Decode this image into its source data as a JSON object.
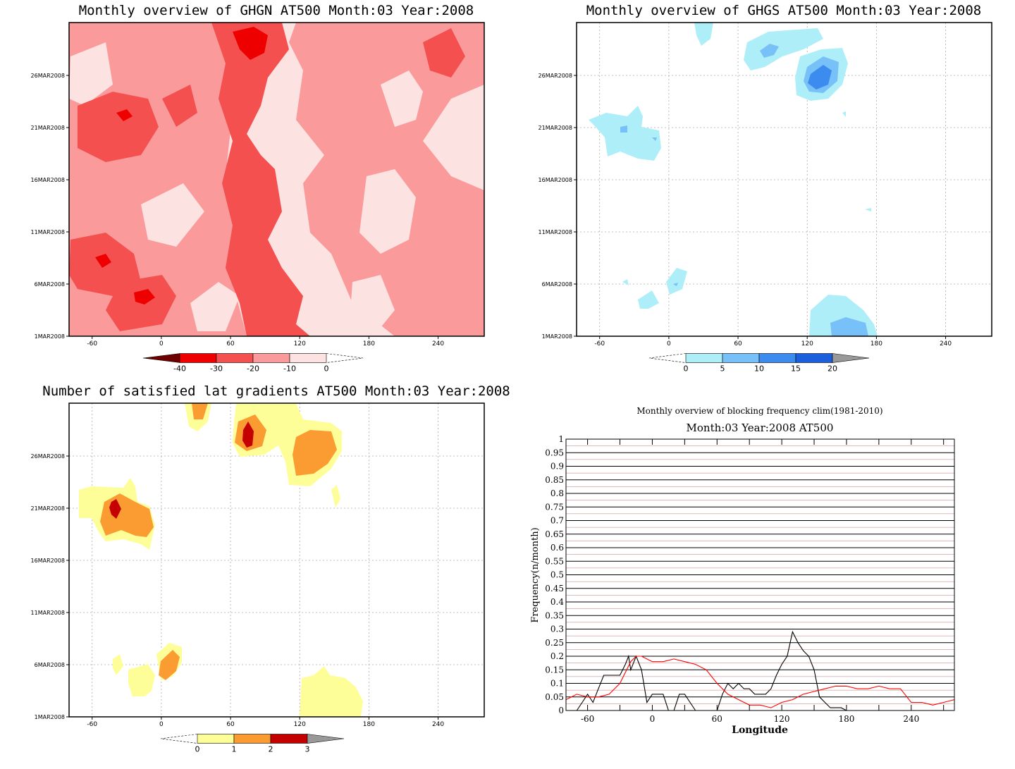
{
  "chart_data": [
    {
      "type": "heatmap",
      "title": "Monthly overview of GHGN AT500 Month:03 Year:2008",
      "xlabel": "",
      "ylabel": "",
      "x_ticks": [
        "-60",
        "0",
        "60",
        "120",
        "180",
        "240"
      ],
      "y_ticks": [
        "1MAR2008",
        "6MAR2008",
        "11MAR2008",
        "16MAR2008",
        "21MAR2008",
        "26MAR2008"
      ],
      "xlim": [
        -80,
        280
      ],
      "colorbar": {
        "labels": [
          "-40",
          "-30",
          "-20",
          "-10",
          "0"
        ],
        "colors": [
          "#6e0000",
          "#ee0000",
          "#f55050",
          "#fa9a9a",
          "#fde2e2"
        ]
      },
      "grid": false
    },
    {
      "type": "heatmap",
      "title": "Monthly overview of GHGS AT500 Month:03 Year:2008",
      "xlabel": "",
      "ylabel": "",
      "x_ticks": [
        "-60",
        "0",
        "60",
        "120",
        "180",
        "240"
      ],
      "y_ticks": [
        "1MAR2008",
        "6MAR2008",
        "11MAR2008",
        "16MAR2008",
        "21MAR2008",
        "26MAR2008"
      ],
      "xlim": [
        -80,
        280
      ],
      "colorbar": {
        "labels": [
          "0",
          "5",
          "10",
          "15",
          "20"
        ],
        "colors": [
          "#aeeef8",
          "#78c0f8",
          "#3c8cf0",
          "#1c5fdc",
          "#999999"
        ]
      },
      "grid": true
    },
    {
      "type": "heatmap",
      "title": "Number of satisfied lat gradients AT500 Month:03 Year:2008",
      "xlabel": "",
      "ylabel": "",
      "x_ticks": [
        "-60",
        "0",
        "60",
        "120",
        "180",
        "240"
      ],
      "y_ticks": [
        "1MAR2008",
        "6MAR2008",
        "11MAR2008",
        "16MAR2008",
        "21MAR2008",
        "26MAR2008"
      ],
      "xlim": [
        -80,
        280
      ],
      "colorbar": {
        "labels": [
          "0",
          "1",
          "2",
          "3"
        ],
        "colors": [
          "#fefe98",
          "#fa9c32",
          "#c40000",
          "#999999"
        ]
      },
      "grid": true
    },
    {
      "type": "line",
      "title": "Monthly overview of blocking frequency clim(1981-2010)",
      "subtitle": "Month:03 Year:2008  AT500",
      "xlabel": "Longitude",
      "ylabel": "Frequency(n/month)",
      "xlim": [
        -80,
        280
      ],
      "ylim": [
        0,
        1
      ],
      "x_ticks": [
        "-60",
        "0",
        "60",
        "120",
        "180",
        "240"
      ],
      "y_ticks": [
        "0",
        "0.05",
        "0.1",
        "0.15",
        "0.2",
        "0.25",
        "0.3",
        "0.35",
        "0.4",
        "0.45",
        "0.5",
        "0.55",
        "0.6",
        "0.65",
        "0.7",
        "0.75",
        "0.8",
        "0.85",
        "0.9",
        "0.95",
        "1"
      ],
      "grid": true,
      "series": [
        {
          "color": "#000000",
          "x": [
            -80,
            -70,
            -65,
            -60,
            -55,
            -50,
            -45,
            -40,
            -35,
            -30,
            -25,
            -22,
            -20,
            -15,
            -10,
            -5,
            0,
            5,
            10,
            15,
            20,
            25,
            30,
            35,
            40,
            45,
            50,
            55,
            60,
            65,
            70,
            75,
            80,
            85,
            90,
            95,
            100,
            105,
            110,
            115,
            120,
            125,
            130,
            135,
            140,
            145,
            150,
            155,
            160,
            165,
            170,
            175,
            180,
            190,
            200,
            210,
            220,
            230,
            240,
            250,
            260,
            270,
            280
          ],
          "y": [
            0,
            0,
            0.03,
            0.06,
            0.03,
            0.08,
            0.13,
            0.13,
            0.13,
            0.13,
            0.17,
            0.2,
            0.15,
            0.2,
            0.15,
            0.03,
            0.06,
            0.06,
            0.06,
            0,
            0,
            0.06,
            0.06,
            0.03,
            0,
            0,
            0,
            0,
            0,
            0.06,
            0.1,
            0.08,
            0.1,
            0.08,
            0.08,
            0.06,
            0.06,
            0.06,
            0.08,
            0.13,
            0.17,
            0.2,
            0.29,
            0.25,
            0.22,
            0.2,
            0.15,
            0.05,
            0.03,
            0.01,
            0.01,
            0.01,
            0,
            0,
            0,
            0,
            0,
            0,
            0,
            0,
            0,
            0,
            0
          ]
        },
        {
          "color": "#ff0000",
          "x": [
            -80,
            -70,
            -60,
            -50,
            -40,
            -30,
            -20,
            -15,
            -10,
            -5,
            0,
            10,
            20,
            30,
            40,
            50,
            60,
            70,
            80,
            90,
            100,
            110,
            120,
            130,
            140,
            150,
            160,
            170,
            180,
            190,
            200,
            210,
            220,
            230,
            240,
            250,
            260,
            270,
            280
          ],
          "y": [
            0.04,
            0.06,
            0.05,
            0.05,
            0.06,
            0.1,
            0.18,
            0.2,
            0.2,
            0.19,
            0.18,
            0.18,
            0.19,
            0.18,
            0.17,
            0.15,
            0.1,
            0.06,
            0.04,
            0.02,
            0.02,
            0.01,
            0.03,
            0.04,
            0.06,
            0.07,
            0.08,
            0.09,
            0.09,
            0.08,
            0.08,
            0.09,
            0.08,
            0.08,
            0.03,
            0.03,
            0.02,
            0.03,
            0.04
          ]
        }
      ]
    }
  ]
}
